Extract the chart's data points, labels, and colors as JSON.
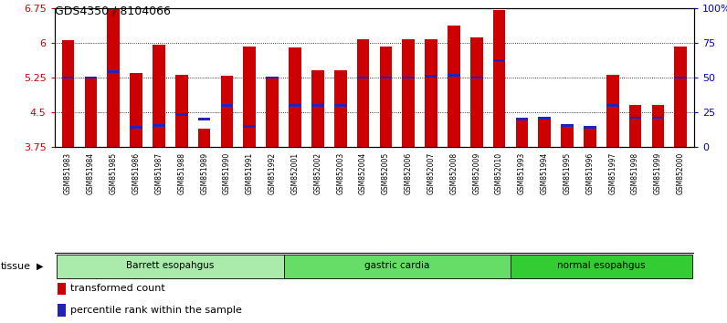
{
  "title": "GDS4350 / 8104066",
  "samples": [
    "GSM851983",
    "GSM851984",
    "GSM851985",
    "GSM851986",
    "GSM851987",
    "GSM851988",
    "GSM851989",
    "GSM851990",
    "GSM851991",
    "GSM851992",
    "GSM852001",
    "GSM852002",
    "GSM852003",
    "GSM852004",
    "GSM852005",
    "GSM852006",
    "GSM852007",
    "GSM852008",
    "GSM852009",
    "GSM852010",
    "GSM851993",
    "GSM851994",
    "GSM851995",
    "GSM851996",
    "GSM851997",
    "GSM851998",
    "GSM851999",
    "GSM852000"
  ],
  "red_values": [
    6.06,
    5.25,
    6.75,
    5.35,
    5.95,
    5.3,
    4.15,
    5.28,
    5.92,
    5.25,
    5.9,
    5.4,
    5.4,
    6.08,
    5.92,
    6.08,
    6.08,
    6.38,
    6.12,
    6.7,
    4.35,
    4.37,
    4.22,
    4.18,
    5.3,
    4.65,
    4.65,
    5.92
  ],
  "blue_values": [
    5.25,
    5.25,
    5.38,
    4.18,
    4.22,
    4.45,
    4.35,
    4.65,
    4.2,
    5.25,
    4.65,
    4.65,
    4.65,
    5.25,
    5.25,
    5.25,
    5.28,
    5.3,
    5.25,
    5.62,
    4.35,
    4.37,
    4.22,
    4.18,
    4.65,
    4.38,
    4.38,
    5.25
  ],
  "groups": [
    {
      "label": "Barrett esopahgus",
      "start": 0,
      "end": 10,
      "color": "#aaeaaa"
    },
    {
      "label": "gastric cardia",
      "start": 10,
      "end": 20,
      "color": "#66dd66"
    },
    {
      "label": "normal esopahgus",
      "start": 20,
      "end": 28,
      "color": "#33cc33"
    }
  ],
  "ymin": 3.75,
  "ymax": 6.75,
  "yticks": [
    3.75,
    4.5,
    5.25,
    6.0,
    6.75
  ],
  "ytick_labels": [
    "3.75",
    "4.5",
    "5.25",
    "6",
    "6.75"
  ],
  "right_ytick_labels": [
    "0",
    "25",
    "50",
    "75",
    "100%"
  ],
  "bar_color": "#cc0000",
  "blue_color": "#2222bb",
  "bar_width": 0.55,
  "grid_dotted_at": [
    4.5,
    5.25,
    6.0
  ],
  "legend_items": [
    {
      "label": "transformed count",
      "color": "#cc0000"
    },
    {
      "label": "percentile rank within the sample",
      "color": "#2222bb"
    }
  ]
}
